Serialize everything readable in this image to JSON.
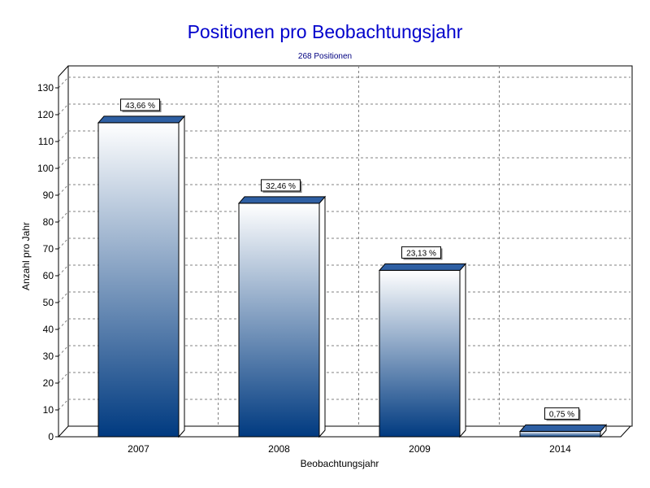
{
  "chart_data": {
    "type": "bar",
    "title": "Positionen pro Beobachtungsjahr",
    "subtitle": "268 Positionen",
    "xlabel": "Beobachtungsjahr",
    "ylabel": "Anzahl pro Jahr",
    "categories": [
      "2007",
      "2008",
      "2009",
      "2014"
    ],
    "values": [
      117,
      87,
      62,
      2
    ],
    "data_labels": [
      "43,66 %",
      "32,46 %",
      "23,13 %",
      "0,75 %"
    ],
    "ylim": [
      0,
      130
    ],
    "yticks": [
      0,
      10,
      20,
      30,
      40,
      50,
      60,
      70,
      80,
      90,
      100,
      110,
      120,
      130
    ],
    "grid": true,
    "style": "3d"
  },
  "colors": {
    "title": "#0000cc",
    "subtitle": "#000080",
    "bar_top": "#ffffff",
    "bar_bottom": "#003a80",
    "bar_cap": "#2e5fa3",
    "bar_side": "#ffffff",
    "grid": "#808080"
  }
}
